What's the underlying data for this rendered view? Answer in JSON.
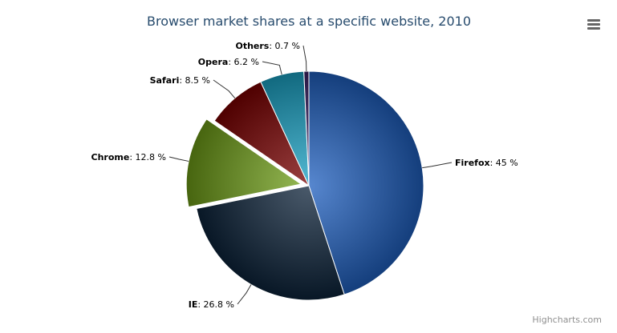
{
  "chart_data": {
    "type": "pie",
    "title": "Browser market shares at a specific website, 2010",
    "series": [
      {
        "data": [
          {
            "name": "Firefox",
            "value": 45.0,
            "color": "#1f5fbf",
            "sliced": false
          },
          {
            "name": "IE",
            "value": 26.8,
            "color": "#0d233a",
            "sliced": false
          },
          {
            "name": "Chrome",
            "value": 12.8,
            "color": "#6d9c17",
            "sliced": true
          },
          {
            "name": "Safari",
            "value": 8.5,
            "color": "#7a0000",
            "sliced": false
          },
          {
            "name": "Opera",
            "value": 6.2,
            "color": "#1aa2c4",
            "sliced": false
          },
          {
            "name": "Others",
            "value": 0.7,
            "color": "#3d2468",
            "sliced": false
          }
        ]
      }
    ],
    "value_suffix": " %",
    "legend": "none"
  },
  "credits": "Highcharts.com",
  "menu_icon": "hamburger-menu-icon"
}
